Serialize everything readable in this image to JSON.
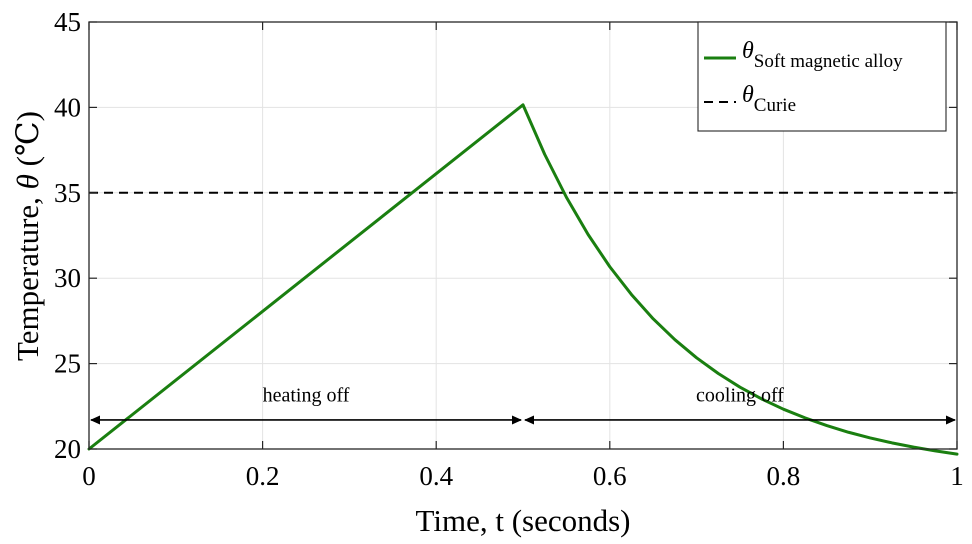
{
  "chart_data": {
    "type": "line",
    "title": "",
    "xlabel": "Time, t (seconds)",
    "ylabel_prefix": "Temperature, ",
    "ylabel_symbol": "θ",
    "ylabel_suffix": " (℃)",
    "xlim": [
      0,
      1
    ],
    "ylim": [
      20,
      45
    ],
    "xticks": [
      0,
      0.2,
      0.4,
      0.6,
      0.8,
      1
    ],
    "xtick_labels": [
      "0",
      "0.2",
      "0.4",
      "0.6",
      "0.8",
      "1"
    ],
    "yticks": [
      20,
      25,
      30,
      35,
      40,
      45
    ],
    "ytick_labels": [
      "20",
      "25",
      "30",
      "35",
      "40",
      "45"
    ],
    "grid": true,
    "legend_position": "top-right",
    "series": [
      {
        "name": "θ Soft magnetic alloy",
        "symbol": "θ",
        "subscript": "Soft magnetic alloy",
        "style": "solid",
        "color": "#1a7f10",
        "x": [
          0,
          0.5,
          0.525,
          0.55,
          0.575,
          0.6,
          0.625,
          0.65,
          0.675,
          0.7,
          0.725,
          0.75,
          0.775,
          0.8,
          0.825,
          0.85,
          0.875,
          0.9,
          0.925,
          0.95,
          0.975,
          1.0
        ],
        "y": [
          20,
          40.15,
          37.25,
          34.74,
          32.56,
          30.67,
          29.04,
          27.62,
          26.4,
          25.34,
          24.42,
          23.62,
          22.93,
          22.33,
          21.82,
          21.37,
          20.98,
          20.65,
          20.36,
          20.11,
          19.89,
          19.7
        ]
      },
      {
        "name": "θ Curie",
        "symbol": "θ",
        "subscript": "Curie",
        "style": "dashed",
        "color": "#000000",
        "x": [
          0,
          1
        ],
        "y": [
          35,
          35
        ]
      }
    ],
    "annotations": [
      {
        "text": "heating off",
        "x_start": 0,
        "x_end": 0.5,
        "y": 21.7,
        "label_x": 0.25,
        "label_y": 23.2
      },
      {
        "text": "cooling off",
        "x_start": 0.5,
        "x_end": 1,
        "y": 21.7,
        "label_x": 0.75,
        "label_y": 23.2
      }
    ]
  }
}
